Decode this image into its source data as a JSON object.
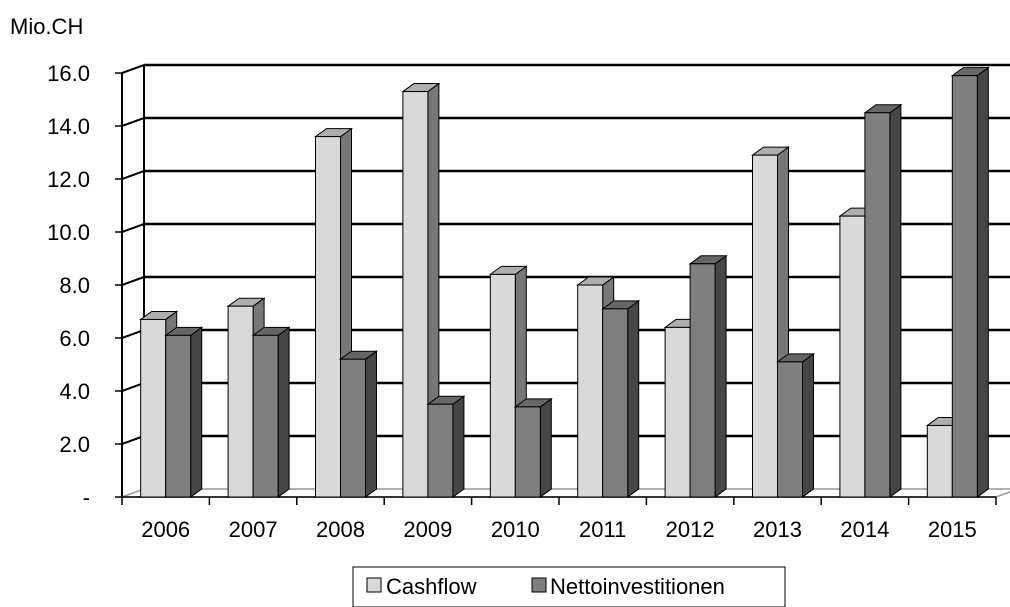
{
  "chart_data": {
    "type": "bar",
    "ylabel": "Mio.CH",
    "categories": [
      "2006",
      "2007",
      "2008",
      "2009",
      "2010",
      "2011",
      "2012",
      "2013",
      "2014",
      "2015"
    ],
    "series": [
      {
        "name": "Cashflow",
        "values": [
          6.7,
          7.2,
          13.6,
          15.3,
          8.4,
          8.0,
          6.4,
          12.9,
          10.6,
          2.7
        ],
        "color": "#d9d9d9"
      },
      {
        "name": "Nettoinvestitionen",
        "values": [
          6.1,
          6.1,
          5.2,
          3.5,
          3.4,
          7.1,
          8.8,
          5.1,
          14.5,
          15.9
        ],
        "color": "#7f7f7f"
      }
    ],
    "ylim": [
      0,
      16
    ],
    "yticks": [
      "-",
      "2.0",
      "4.0",
      "6.0",
      "8.0",
      "10.0",
      "12.0",
      "14.0",
      "16.0"
    ],
    "grid": true,
    "legend": "bottom"
  }
}
